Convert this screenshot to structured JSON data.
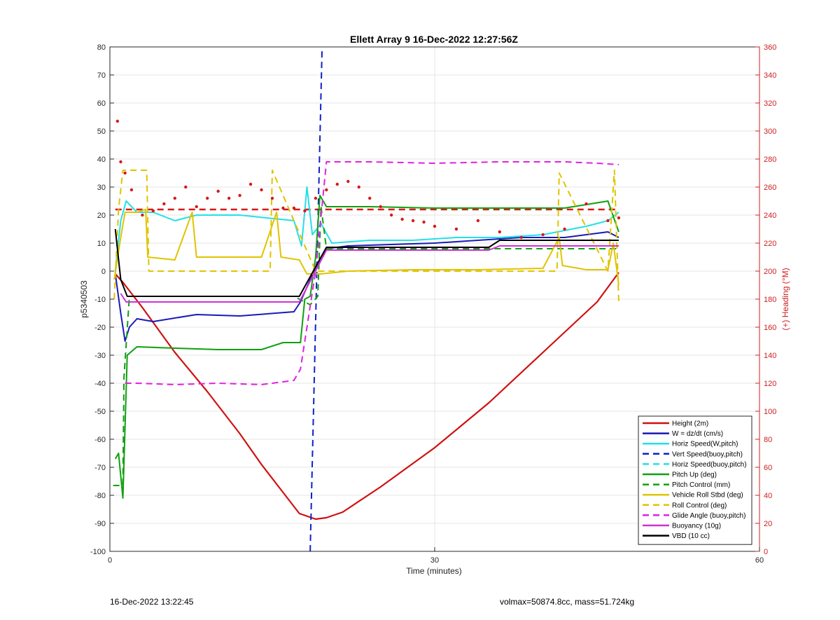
{
  "chart_data": {
    "type": "line",
    "title": "Ellett Array 9 16-Dec-2022 12:27:56Z",
    "xlabel": "Time (minutes)",
    "ylabel": "p5340503",
    "y2label": "(+) Heading (°M)",
    "xlim": [
      0,
      60
    ],
    "ylim": [
      -100,
      80
    ],
    "y2lim": [
      0,
      360
    ],
    "xticks": [
      "0",
      "30",
      "60"
    ],
    "yticks": [
      "80",
      "70",
      "60",
      "50",
      "40",
      "30",
      "20",
      "10",
      "0",
      "-10",
      "-20",
      "-30",
      "-40",
      "-50",
      "-60",
      "-70",
      "-80",
      "-90",
      "-100"
    ],
    "y2ticks": [
      "360",
      "340",
      "320",
      "300",
      "280",
      "260",
      "240",
      "220",
      "200",
      "180",
      "160",
      "140",
      "120",
      "100",
      "80",
      "60",
      "40",
      "20",
      "0"
    ],
    "grid": true,
    "legend_position": "bottom-right",
    "series": [
      {
        "name": "Height (2m)",
        "color": "#d01010",
        "style": "solid",
        "x": [
          0.5,
          1.2,
          3,
          6,
          9,
          12,
          14,
          16,
          17.5,
          19,
          20,
          21.5,
          25,
          30,
          35,
          40,
          45,
          47
        ],
        "y": [
          -1,
          -4,
          -13,
          -29,
          -43,
          -58,
          -69,
          -79,
          -86.5,
          -88.5,
          -88,
          -86,
          -77,
          -63,
          -47,
          -29,
          -11,
          -0.5
        ]
      },
      {
        "name": "W = dz/dt (cm/s)",
        "color": "#1a1ab8",
        "style": "solid",
        "x": [
          0.5,
          1,
          1.4,
          1.8,
          2.5,
          4,
          8,
          12,
          17,
          17.6,
          18.5,
          19.5,
          20,
          22,
          26,
          30,
          34,
          38,
          42,
          46,
          47
        ],
        "y": [
          -1,
          -15,
          -25,
          -20,
          -17,
          -18,
          -15.5,
          -16,
          -14.5,
          -11,
          -3,
          5,
          8,
          9,
          9.5,
          10,
          11,
          12,
          12,
          14,
          12
        ]
      },
      {
        "name": "Horiz Speed(W,pitch)",
        "color": "#22e0e8",
        "style": "solid",
        "x": [
          0.5,
          1,
          1.5,
          2.5,
          4,
          6,
          8,
          12,
          17,
          17.7,
          18.2,
          18.7,
          19.5,
          20.5,
          24,
          28,
          32,
          36,
          40,
          44,
          46,
          47
        ],
        "y": [
          0,
          18,
          25,
          21,
          21,
          18,
          20,
          20,
          18,
          9,
          30,
          13,
          17,
          10,
          11,
          11,
          12,
          12,
          13,
          16,
          18,
          21
        ]
      },
      {
        "name": "Vert Speed(buoy,pitch)",
        "color": "#1020c8",
        "style": "dashed",
        "x": [
          18.5,
          19.6
        ],
        "y": [
          -100,
          80
        ]
      },
      {
        "name": "Horiz Speed(buoy,pitch)",
        "color": "#22e0e8",
        "style": "dashed",
        "x": [],
        "y": []
      },
      {
        "name": "Pitch Up (deg)",
        "color": "#10a010",
        "style": "solid",
        "x": [
          0.5,
          0.8,
          1.2,
          1.6,
          2.5,
          6,
          10,
          14,
          16,
          17.6,
          18,
          18.5,
          19,
          19.4,
          20,
          24,
          30,
          36,
          42,
          46,
          47
        ],
        "y": [
          -67,
          -65,
          -81,
          -30,
          -27,
          -27.5,
          -28,
          -28,
          -25.5,
          -25.5,
          -10,
          -9,
          5,
          27,
          23,
          23,
          22.5,
          22.5,
          22.5,
          25,
          14
        ]
      },
      {
        "name": "Pitch Control (mm)",
        "color": "#10a010",
        "style": "dashed",
        "x": [
          0.3,
          1.2,
          1.3,
          1.8,
          17,
          17.5,
          18.5,
          19.2,
          19.5,
          20,
          30,
          46,
          47
        ],
        "y": [
          -76.5,
          -76.5,
          -38,
          -9,
          -9,
          -10,
          -12,
          -9,
          23,
          8,
          8,
          8,
          8
        ]
      },
      {
        "name": "Vehicle Roll Stbd (deg)",
        "color": "#e0c400",
        "style": "solid",
        "x": [
          0.4,
          1,
          1.4,
          2.5,
          3.3,
          3.5,
          6,
          7.6,
          8,
          14,
          15.4,
          15.8,
          17.5,
          18.2,
          19.5,
          22,
          28,
          34,
          40,
          41.5,
          41.8,
          44,
          46,
          46.5,
          47
        ],
        "y": [
          -3,
          12,
          21,
          21,
          22,
          5,
          4,
          21,
          5,
          5,
          21,
          5,
          4,
          -1,
          -1,
          0,
          0.5,
          0.5,
          1,
          12,
          2,
          0.5,
          0.5,
          10,
          -5
        ]
      },
      {
        "name": "Roll Control (deg)",
        "color": "#e0c400",
        "style": "dashed",
        "x": [
          0.4,
          0.8,
          1.2,
          2.2,
          3.4,
          3.6,
          14.8,
          15.0,
          19,
          41.3,
          41.5,
          46,
          46.6,
          47
        ],
        "y": [
          -10,
          22,
          36,
          36,
          36,
          0,
          0,
          36,
          0,
          0,
          35,
          0,
          36,
          -11
        ]
      },
      {
        "name": "Glide Angle (buoy,pitch)",
        "color": "#e020e0",
        "style": "dashed",
        "x": [
          1.4,
          2.5,
          6,
          10,
          14,
          17,
          17.6,
          18.2,
          19,
          20,
          24,
          30,
          36,
          42,
          45,
          47
        ],
        "y": [
          -40,
          -40,
          -40.5,
          -40,
          -40.5,
          -39,
          -35,
          -20,
          0,
          39,
          39,
          38.5,
          39,
          39,
          38.5,
          38
        ]
      },
      {
        "name": "Buoyancy (10g)",
        "color": "#d030d8",
        "style": "solid",
        "x": [
          1.0,
          1.5,
          17.5,
          20,
          35,
          36,
          47
        ],
        "y": [
          -8,
          -11,
          -11,
          7.5,
          7.5,
          9,
          9
        ]
      },
      {
        "name": "VBD (10 cc)",
        "color": "#000000",
        "style": "solid",
        "x": [
          0.5,
          1,
          1.6,
          17.5,
          20,
          35,
          36,
          47
        ],
        "y": [
          15,
          -3,
          -9,
          -9,
          8.5,
          8.5,
          11,
          11
        ]
      }
    ],
    "heading_series": {
      "color": "#d81818",
      "style": "dots",
      "x": [
        0.7,
        1.0,
        1.4,
        2.0,
        3,
        4,
        5,
        6,
        7,
        8,
        9,
        10,
        11,
        12,
        13,
        14,
        15,
        16,
        17,
        18,
        19,
        20,
        21,
        22,
        23,
        24,
        25,
        26,
        27,
        28,
        29,
        30,
        32,
        34,
        36,
        38,
        40,
        42,
        44,
        46,
        47
      ],
      "y": [
        307,
        278,
        270,
        258,
        240,
        243,
        248,
        252,
        260,
        246,
        252,
        257,
        252,
        254,
        262,
        258,
        252,
        245,
        245,
        243,
        252,
        258,
        262,
        264,
        260,
        252,
        246,
        240,
        237,
        236,
        235,
        232,
        230,
        236,
        228,
        224,
        226,
        230,
        248,
        236,
        238
      ]
    },
    "heading_reference": {
      "color": "#d81818",
      "style": "dashed",
      "x": [
        0.5,
        47
      ],
      "y": [
        244,
        244
      ]
    }
  },
  "footer": {
    "timestamp": "16-Dec-2022 13:22:45",
    "stats": "volmax=50874.8cc, mass=51.724kg"
  }
}
